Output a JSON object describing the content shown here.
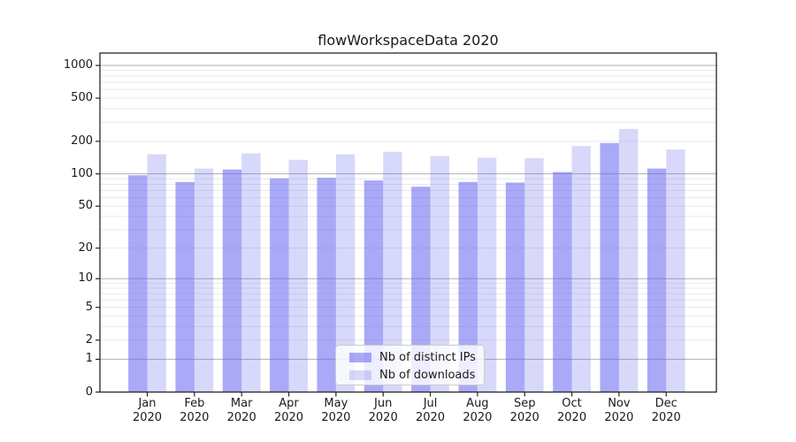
{
  "chart_data": {
    "type": "bar",
    "title": "flowWorkspaceData 2020",
    "categories": [
      "Jan",
      "Feb",
      "Mar",
      "Apr",
      "May",
      "Jun",
      "Jul",
      "Aug",
      "Sep",
      "Oct",
      "Nov",
      "Dec"
    ],
    "category_year": "2020",
    "series": [
      {
        "name": "Nb of distinct IPs",
        "color": "rgba(99,99,240,0.55)",
        "values": [
          97,
          84,
          110,
          91,
          92,
          87,
          76,
          84,
          83,
          104,
          193,
          112
        ]
      },
      {
        "name": "Nb of downloads",
        "color": "rgba(99,99,240,0.25)",
        "values": [
          152,
          112,
          155,
          135,
          152,
          160,
          146,
          141,
          140,
          181,
          260,
          168
        ]
      }
    ],
    "yscale": "log10(value+1)",
    "ylim": [
      0,
      1300
    ],
    "y_ticks": [
      0,
      1,
      2,
      5,
      10,
      20,
      50,
      100,
      200,
      500,
      1000
    ],
    "legend_position": "lower center",
    "grid": {
      "major_color": "#b0b0b0",
      "minor_color": "#e9e9e9"
    },
    "spine_color": "#262626",
    "text_color": "#1a1a1a"
  }
}
